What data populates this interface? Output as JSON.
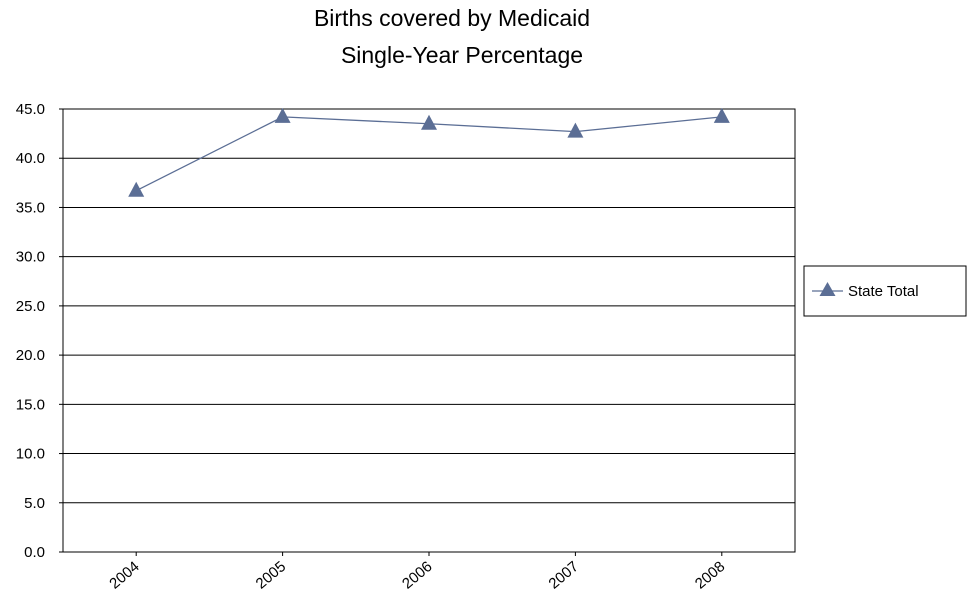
{
  "chart_data": {
    "type": "line",
    "title": [
      "Births covered by Medicaid",
      "Single-Year Percentage"
    ],
    "xlabel": "",
    "ylabel": "",
    "categories": [
      "2004",
      "2005",
      "2006",
      "2007",
      "2008"
    ],
    "ylim": [
      0,
      45
    ],
    "yticks": [
      "0.0",
      "5.0",
      "10.0",
      "15.0",
      "20.0",
      "25.0",
      "30.0",
      "35.0",
      "40.0",
      "45.0"
    ],
    "grid": true,
    "legend_position": "right",
    "series": [
      {
        "name": "State Total",
        "values": [
          36.7,
          44.2,
          43.5,
          42.7,
          44.2
        ],
        "color": "#5b6e95",
        "marker": "triangle"
      }
    ]
  }
}
